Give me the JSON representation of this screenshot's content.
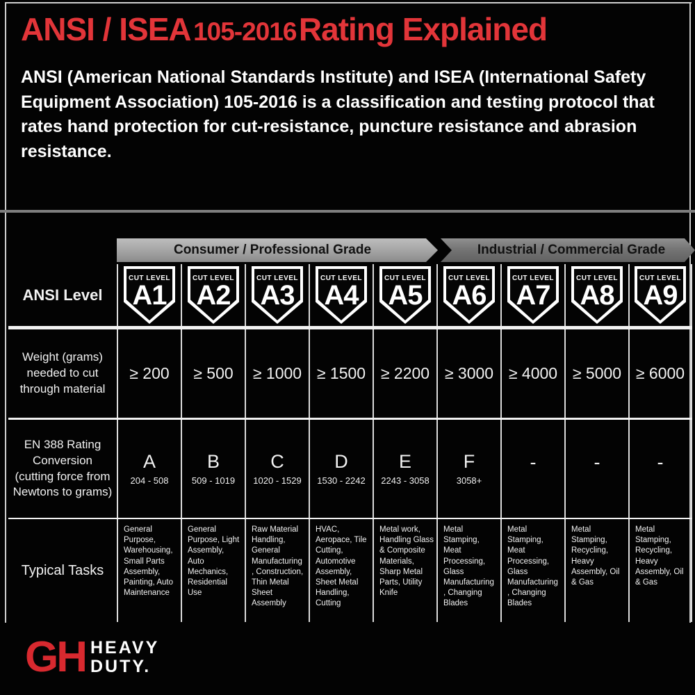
{
  "header": {
    "title_part1": "ANSI / ISEA",
    "title_part2": "105-2016",
    "title_part3": "Rating Explained",
    "description": "ANSI (American National Standards Institute) and ISEA (International Safety Equipment Association) 105-2016 is a classification and testing protocol that rates hand protection for cut-resistance, puncture resistance and abrasion resistance."
  },
  "table": {
    "grade_banners": [
      {
        "label": "Consumer / Professional Grade",
        "columns_spanned": "A1-A5"
      },
      {
        "label": "Industrial / Commercial Grade",
        "columns_spanned": "A6-A9"
      }
    ],
    "row_labels": {
      "ansi_level": "ANSI Level",
      "weight": "Weight (grams) needed to cut through material",
      "en388": "EN 388 Rating Conversion (cutting force from Newtons to grams)",
      "tasks": "Typical Tasks"
    },
    "badge_caption": "CUT LEVEL",
    "columns": [
      {
        "level": "A1",
        "weight": "≥ 200",
        "en388_letter": "A",
        "en388_range": "204 - 508",
        "tasks": "General Purpose, Warehousing, Small Parts Assembly, Painting, Auto Maintenance"
      },
      {
        "level": "A2",
        "weight": "≥ 500",
        "en388_letter": "B",
        "en388_range": "509 - 1019",
        "tasks": "General Purpose, Light Assembly, Auto Mechanics, Residential Use"
      },
      {
        "level": "A3",
        "weight": "≥ 1000",
        "en388_letter": "C",
        "en388_range": "1020 - 1529",
        "tasks": "Raw Material Handling, General Manufacturing , Construction, Thin Metal Sheet Assembly"
      },
      {
        "level": "A4",
        "weight": "≥ 1500",
        "en388_letter": "D",
        "en388_range": "1530 - 2242",
        "tasks": "HVAC, Aeropace, Tile Cutting, Automotive Assembly, Sheet Metal Handling, Cutting"
      },
      {
        "level": "A5",
        "weight": "≥ 2200",
        "en388_letter": "E",
        "en388_range": "2243 - 3058",
        "tasks": "Metal work, Handling Glass & Composite Materials, Sharp Metal Parts, Utility Knife"
      },
      {
        "level": "A6",
        "weight": "≥ 3000",
        "en388_letter": "F",
        "en388_range": "3058+",
        "tasks": "Metal Stamping, Meat Processing, Glass Manufacturing , Changing Blades"
      },
      {
        "level": "A7",
        "weight": "≥ 4000",
        "en388_letter": "-",
        "en388_range": "",
        "tasks": "Metal Stamping, Meat Processing, Glass Manufacturing , Changing Blades"
      },
      {
        "level": "A8",
        "weight": "≥ 5000",
        "en388_letter": "-",
        "en388_range": "",
        "tasks": "Metal Stamping, Recycling, Heavy Assembly, Oil & Gas"
      },
      {
        "level": "A9",
        "weight": "≥ 6000",
        "en388_letter": "-",
        "en388_range": "",
        "tasks": "Metal Stamping, Recycling, Heavy Assembly, Oil & Gas"
      }
    ]
  },
  "footer": {
    "logo_text": "GH",
    "brand_line1": "HEAVY",
    "brand_line2": "DUTY."
  },
  "colors": {
    "accent_red": "#e23539",
    "banner_light": "#a8a8a8",
    "banner_dark": "#757575",
    "line": "#dcdcdc",
    "bg": "#000000"
  }
}
